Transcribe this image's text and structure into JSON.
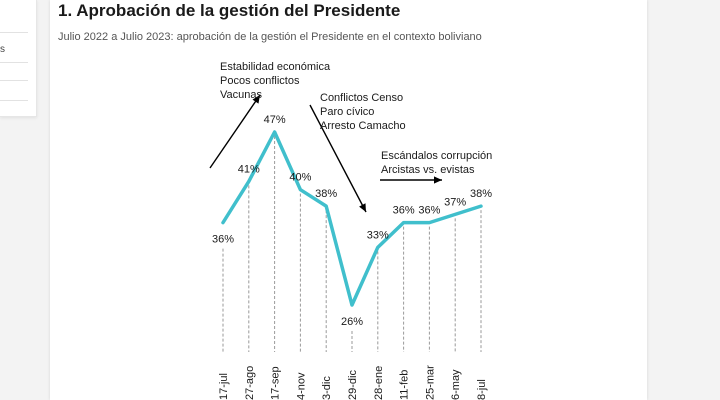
{
  "side_panel": {
    "glyph": "s"
  },
  "card": {
    "title": "1. Aprobación de la gestión del Presidente",
    "subtitle": "Julio 2022 a Julio 2023: aprobación de la gestión el Presidente en el contexto boliviano"
  },
  "chart_data": {
    "type": "line",
    "categories": [
      "17-jul",
      "27-ago",
      "17-sep",
      "4-nov",
      "3-dic",
      "29-dic",
      "28-ene",
      "11-feb",
      "25-mar",
      "6-may",
      "8-jul"
    ],
    "values": [
      36,
      41,
      47,
      40,
      38,
      26,
      33,
      36,
      36,
      37,
      38
    ],
    "data_labels": [
      "36%",
      "41%",
      "47%",
      "40%",
      "38%",
      "26%",
      "33%",
      "36%",
      "36%",
      "37%",
      "38%"
    ],
    "line_color": "#40bfcc",
    "annotations": [
      {
        "lines": [
          "Estabilidad económica",
          "Pocos conflictos",
          "Vacunas"
        ],
        "arrow": "up-right"
      },
      {
        "lines": [
          "Conflictos Censo",
          "Paro cívico",
          "Arresto Camacho"
        ],
        "arrow": "down-right"
      },
      {
        "lines": [
          "Escándalos corrupción",
          "Arcistas vs. evistas"
        ],
        "arrow": "right"
      }
    ]
  }
}
